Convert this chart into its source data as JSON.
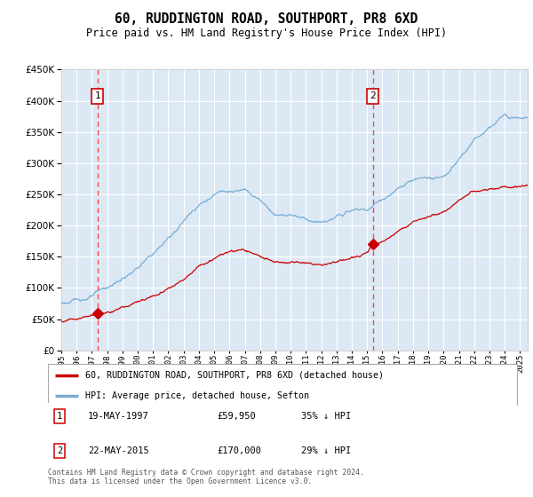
{
  "title": "60, RUDDINGTON ROAD, SOUTHPORT, PR8 6XD",
  "subtitle": "Price paid vs. HM Land Registry's House Price Index (HPI)",
  "footer": "Contains HM Land Registry data © Crown copyright and database right 2024.\nThis data is licensed under the Open Government Licence v3.0.",
  "legend_line1": "60, RUDDINGTON ROAD, SOUTHPORT, PR8 6XD (detached house)",
  "legend_line2": "HPI: Average price, detached house, Sefton",
  "sale1_label": "1",
  "sale1_date": "19-MAY-1997",
  "sale1_price": "£59,950",
  "sale1_hpi": "35% ↓ HPI",
  "sale1_year": 1997.38,
  "sale1_value": 59950,
  "sale2_label": "2",
  "sale2_date": "22-MAY-2015",
  "sale2_price": "£170,000",
  "sale2_hpi": "29% ↓ HPI",
  "sale2_year": 2015.38,
  "sale2_value": 170000,
  "ylim": [
    0,
    450000
  ],
  "xlim_start": 1995,
  "xlim_end": 2025.5,
  "plot_bg_color": "#dce9f5",
  "grid_color": "#ffffff",
  "red_line_color": "#cc0000",
  "blue_line_color": "#7aadd4",
  "marker_color": "#cc0000",
  "dashed_line_color": "#ff4444",
  "box_color": "#cc0000",
  "hpi_base": [
    1995,
    1996,
    1997,
    1998,
    1999,
    2000,
    2001,
    2002,
    2003,
    2004,
    2005,
    2006,
    2007,
    2008,
    2009,
    2010,
    2011,
    2012,
    2013,
    2014,
    2015,
    2016,
    2017,
    2018,
    2019,
    2020,
    2021,
    2022,
    2023,
    2024,
    2025.5
  ],
  "hpi_vals": [
    76000,
    80000,
    88000,
    98000,
    112000,
    130000,
    150000,
    175000,
    205000,
    235000,
    250000,
    262000,
    262000,
    248000,
    228000,
    232000,
    228000,
    222000,
    228000,
    238000,
    238000,
    255000,
    268000,
    278000,
    280000,
    285000,
    310000,
    340000,
    355000,
    375000,
    385000
  ],
  "red_base": [
    1995,
    1996,
    1997.38,
    1998,
    1999,
    2000,
    2001,
    2002,
    2003,
    2004,
    2005,
    2006,
    2007,
    2008,
    2009,
    2010,
    2011,
    2012,
    2013,
    2014,
    2015.38,
    2016,
    2017,
    2018,
    2019,
    2020,
    2021,
    2022,
    2023,
    2024,
    2025.5
  ],
  "red_vals": [
    47000,
    52000,
    59950,
    64000,
    72000,
    82000,
    95000,
    108000,
    128000,
    148000,
    162000,
    172000,
    172000,
    162000,
    150000,
    152000,
    150000,
    148000,
    152000,
    158000,
    170000,
    182000,
    200000,
    215000,
    220000,
    225000,
    238000,
    252000,
    258000,
    262000,
    265000
  ]
}
